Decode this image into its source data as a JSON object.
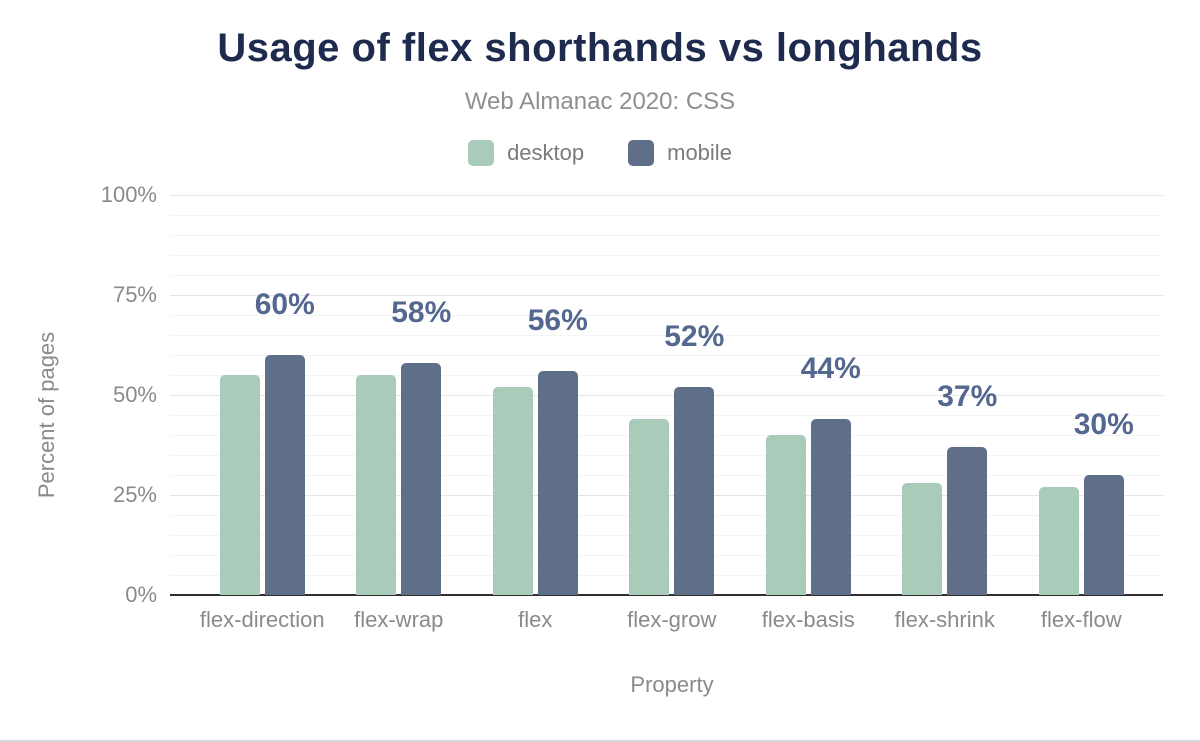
{
  "chart_data": {
    "type": "bar",
    "title": "Usage of flex shorthands vs longhands",
    "subtitle": "Web Almanac 2020: CSS",
    "xlabel": "Property",
    "ylabel": "Percent of pages",
    "categories": [
      "flex-direction",
      "flex-wrap",
      "flex",
      "flex-grow",
      "flex-basis",
      "flex-shrink",
      "flex-flow"
    ],
    "series": [
      {
        "name": "desktop",
        "color": "#a9cbb9",
        "values": [
          55,
          55,
          52,
          44,
          40,
          28,
          27
        ]
      },
      {
        "name": "mobile",
        "color": "#5f6e89",
        "values": [
          60,
          58,
          56,
          52,
          44,
          37,
          30
        ],
        "labels": [
          "60%",
          "58%",
          "56%",
          "52%",
          "44%",
          "37%",
          "30%"
        ]
      }
    ],
    "ylim": [
      0,
      100
    ],
    "y_ticks": [
      "0%",
      "25%",
      "50%",
      "75%",
      "100%"
    ],
    "y_tick_values": [
      0,
      25,
      50,
      75,
      100
    ],
    "grid": "horizontal; minor lines every 5%, major lines every 25%",
    "legend_position": "top-center",
    "value_label_color": "#53678f"
  }
}
